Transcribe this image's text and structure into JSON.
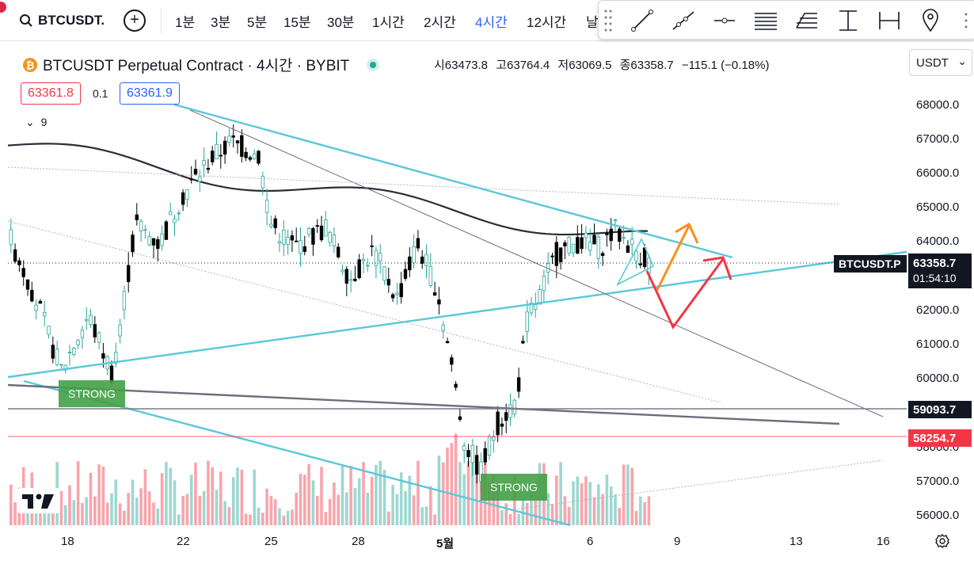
{
  "header": {
    "symbol": "BTCUSDT.",
    "intervals": [
      "1분",
      "3분",
      "5분",
      "15분",
      "30분",
      "1시간",
      "2시간",
      "4시간",
      "12시간",
      "날"
    ],
    "active_interval": "4시간"
  },
  "drawing_tools": [
    "trend-line-icon",
    "ray-icon",
    "horizontal-ray-icon",
    "parallel-channel-icon",
    "fib-icon",
    "vertical-range-icon",
    "horizontal-range-icon",
    "location-icon"
  ],
  "legend": {
    "title": "BTCUSDT Perpetual Contract · 4시간 · BYBIT",
    "open": "시63473.8",
    "high": "고63764.4",
    "low": "저63069.5",
    "close": "종63358.7",
    "change": "−115.1 (−0.18%)",
    "bid": "63361.8",
    "spread": "0.1",
    "ask": "63361.9",
    "indicator_toggle": "9"
  },
  "currency": "USDT",
  "price_axis": [
    "68000.0",
    "67000.0",
    "66000.0",
    "65000.0",
    "64000.0",
    "62000.0",
    "61000.0",
    "60000.0",
    "58000.0",
    "57000.0",
    "56000.0"
  ],
  "time_axis": [
    "18",
    "22",
    "25",
    "28",
    "5월",
    "6",
    "9",
    "13",
    "16"
  ],
  "price_tags": {
    "symbol": "BTCUSDT.P",
    "last": "63358.7",
    "countdown": "01:54:10",
    "level1": "59093.7",
    "level2": "58254.7"
  },
  "labels": {
    "strong": "STRONG"
  },
  "colors": {
    "up": "#26a69a",
    "down": "#000000",
    "trend": "#5ac8d8",
    "red": "#f23645",
    "orange": "#ff8c1a"
  }
}
